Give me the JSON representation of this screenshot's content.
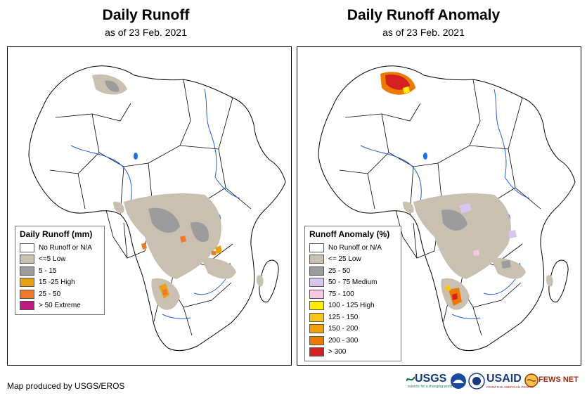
{
  "left_map": {
    "title": "Daily Runoff",
    "subtitle": "as of 23 Feb. 2021",
    "legend": {
      "title": "Daily Runoff (mm)",
      "items": [
        {
          "label": "No Runoff or N/A",
          "color": "#ffffff"
        },
        {
          "label": "<=5 Low",
          "color": "#c9c0b2"
        },
        {
          "label": "5 - 15",
          "color": "#9c9c9c"
        },
        {
          "label": "15 -25 High",
          "color": "#e8a21a"
        },
        {
          "label": "25 - 50",
          "color": "#f07a2a"
        },
        {
          "label": "> 50 Extreme",
          "color": "#c0197f"
        }
      ]
    }
  },
  "right_map": {
    "title": "Daily Runoff Anomaly",
    "subtitle": "as of 23 Feb. 2021",
    "legend": {
      "title": "Runoff Anomaly (%)",
      "items": [
        {
          "label": "No Runoff or N/A",
          "color": "#ffffff"
        },
        {
          "label": "<= 25 Low",
          "color": "#c9c0b2"
        },
        {
          "label": "25 - 50",
          "color": "#9c9c9c"
        },
        {
          "label": "50 - 75 Medium",
          "color": "#d9c6f0"
        },
        {
          "label": "75 - 100",
          "color": "#f8c8e0"
        },
        {
          "label": "100 - 125 High",
          "color": "#ffee00"
        },
        {
          "label": "125 - 150",
          "color": "#f8c61a"
        },
        {
          "label": "150 - 200",
          "color": "#f0a000"
        },
        {
          "label": "200 - 300",
          "color": "#ec7a00"
        },
        {
          "label": "> 300",
          "color": "#d42020"
        }
      ]
    }
  },
  "credit": "Map produced by USGS/EROS",
  "logos": {
    "usgs": "USGS",
    "usgs_tagline": "science for a changing world",
    "usaid": "USAID",
    "usaid_tagline": "FROM THE AMERICAN PEOPLE",
    "fewsnet": "FEWS NET"
  },
  "colors": {
    "river": "#1f5fd6",
    "lake": "#1a6ee8",
    "border": "#000000"
  }
}
